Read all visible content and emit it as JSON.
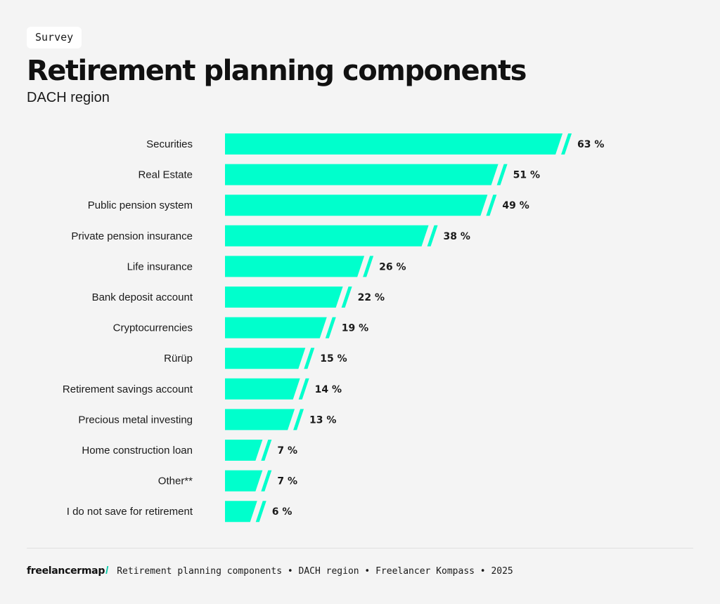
{
  "badge": "Survey",
  "title": "Retirement planning components",
  "subtitle": "DACH region",
  "colors": {
    "bar": "#00ffcc",
    "background": "#f4f4f4",
    "text": "#1a1a1a"
  },
  "chart_data": {
    "type": "bar",
    "orientation": "horizontal",
    "categories": [
      "Securities",
      "Real Estate",
      "Public pension system",
      "Private pension insurance",
      "Life insurance",
      "Bank deposit account",
      "Cryptocurrencies",
      "Rürüp",
      "Retirement savings account",
      "Precious metal investing",
      "Home construction loan",
      "Other**",
      "I do not save for retirement"
    ],
    "values": [
      63,
      51,
      49,
      38,
      26,
      22,
      19,
      15,
      14,
      13,
      7,
      7,
      6
    ],
    "value_labels": [
      "63 %",
      "51 %",
      "49 %",
      "38 %",
      "26 %",
      "22 %",
      "19 %",
      "15 %",
      "14 %",
      "13 %",
      "7 %",
      "7 %",
      "6 %"
    ],
    "unit": "%",
    "grid": false
  },
  "footer": {
    "brand": "freelancermap",
    "brand_mark": "/",
    "text": "Retirement planning components • DACH region • Freelancer Kompass • 2025"
  }
}
